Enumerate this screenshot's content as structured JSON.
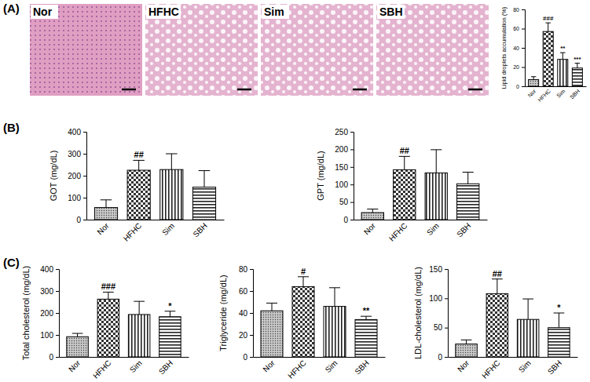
{
  "panel_labels": [
    "(A)",
    "(B)",
    "(C)"
  ],
  "micrographs": [
    "Nor",
    "HFHC",
    "Sim",
    "SBH"
  ],
  "chart_data": [
    {
      "type": "bar",
      "categories": [
        "Nor",
        "HFHC",
        "Sim",
        "SBH"
      ],
      "values": [
        7,
        57,
        28,
        19
      ],
      "errors": [
        3,
        9,
        7,
        5
      ],
      "annotations": [
        null,
        "###",
        "**",
        "***"
      ],
      "y_label": "Lipid droplets accumulation (%)",
      "ylim": [
        0,
        80
      ],
      "yticks": [
        0,
        20,
        40,
        60,
        80
      ]
    },
    {
      "type": "bar",
      "categories": [
        "Nor",
        "HFHC",
        "Sim",
        "SBH"
      ],
      "values": [
        55,
        225,
        228,
        148
      ],
      "errors": [
        35,
        45,
        72,
        75
      ],
      "annotations": [
        null,
        "##",
        null,
        null
      ],
      "y_label": "GOT (mg/dL)",
      "ylim": [
        0,
        400
      ],
      "yticks": [
        0,
        100,
        200,
        300,
        400
      ]
    },
    {
      "type": "bar",
      "categories": [
        "Nor",
        "HFHC",
        "Sim",
        "SBH"
      ],
      "values": [
        20,
        142,
        133,
        102
      ],
      "errors": [
        10,
        38,
        66,
        33
      ],
      "annotations": [
        null,
        "##",
        null,
        null
      ],
      "y_label": "GPT (mg/dL)",
      "ylim": [
        0,
        250
      ],
      "yticks": [
        0,
        50,
        100,
        150,
        200,
        250
      ]
    },
    {
      "type": "bar",
      "categories": [
        "Nor",
        "HFHC",
        "Sim",
        "SBH"
      ],
      "values": [
        92,
        263,
        193,
        183
      ],
      "errors": [
        15,
        32,
        60,
        25
      ],
      "annotations": [
        null,
        "###",
        null,
        "*"
      ],
      "y_label": "Total cholesterol (mg/dL)",
      "ylim": [
        0,
        400
      ],
      "yticks": [
        0,
        100,
        200,
        300,
        400
      ]
    },
    {
      "type": "bar",
      "categories": [
        "Nor",
        "HFHC",
        "Sim",
        "SBH"
      ],
      "values": [
        42,
        64,
        46,
        34
      ],
      "errors": [
        7,
        9,
        17,
        3
      ],
      "annotations": [
        null,
        "#",
        null,
        "**"
      ],
      "y_label": "Triglyceride (mg/dL)",
      "ylim": [
        0,
        80
      ],
      "yticks": [
        0,
        20,
        40,
        60,
        80
      ]
    },
    {
      "type": "bar",
      "categories": [
        "Nor",
        "HFHC",
        "Sim",
        "SBH"
      ],
      "values": [
        22,
        108,
        64,
        50
      ],
      "errors": [
        7,
        25,
        35,
        25
      ],
      "annotations": [
        null,
        "##",
        null,
        "*"
      ],
      "y_label": "LDL-cholesterol (mg/dL)",
      "ylim": [
        0,
        150
      ],
      "yticks": [
        0,
        50,
        100,
        150
      ]
    }
  ]
}
